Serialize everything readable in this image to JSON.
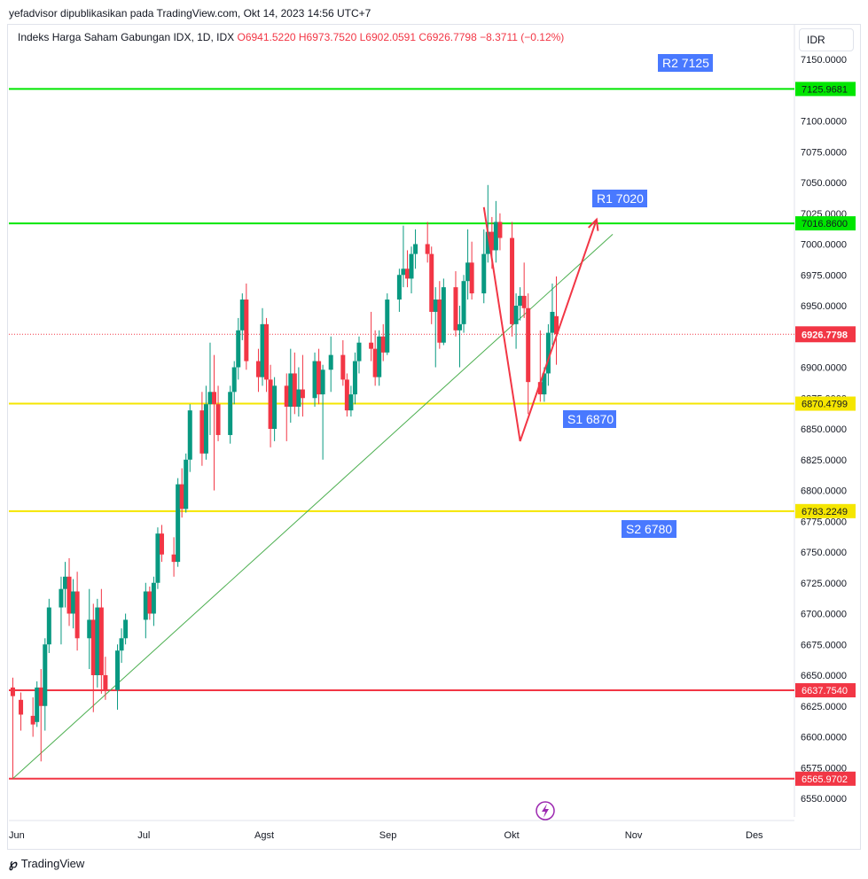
{
  "credit": "yefadvisor dipublikasikan pada TradingView.com, Okt 14, 2023 14:56 UTC+7",
  "header": {
    "symbol": "Indeks Harga Saham Gabungan IDX, 1D, IDX",
    "open": "O6941.5220",
    "high": "H6973.7520",
    "low": "L6902.0591",
    "close": "C6926.7798",
    "change": "−8.3711 (−0.12%)"
  },
  "currency": "IDR",
  "logo": "TradingView",
  "chart_data": {
    "type": "candlestick",
    "y_axis": {
      "min": 6550,
      "max": 7150,
      "ticks": [
        "7150.0000",
        "7125.0000",
        "7100.0000",
        "7075.0000",
        "7050.0000",
        "7025.0000",
        "7000.0000",
        "6975.0000",
        "6950.0000",
        "6925.0000",
        "6900.0000",
        "6875.0000",
        "6850.0000",
        "6825.0000",
        "6800.0000",
        "6775.0000",
        "6750.0000",
        "6725.0000",
        "6700.0000",
        "6675.0000",
        "6650.0000",
        "6625.0000",
        "6600.0000",
        "6575.0000",
        "6550.0000"
      ]
    },
    "x_axis": {
      "labels": [
        {
          "label": "Jun",
          "date": "2023-06-01"
        },
        {
          "label": "Jul",
          "date": "2023-07-03"
        },
        {
          "label": "Agst",
          "date": "2023-08-01"
        },
        {
          "label": "Sep",
          "date": "2023-09-01"
        },
        {
          "label": "Okt",
          "date": "2023-10-02"
        },
        {
          "label": "Nov",
          "date": "2023-11-01"
        },
        {
          "label": "Des",
          "date": "2023-12-01"
        }
      ]
    },
    "levels": [
      {
        "value": 7125.9681,
        "label": "7125.9681",
        "color": "#00e600",
        "tag": "R2 7125"
      },
      {
        "value": 7016.86,
        "label": "7016.8600",
        "color": "#00e600",
        "tag": "R1 7020"
      },
      {
        "value": 6870.4799,
        "label": "6870.4799",
        "color": "#f5e600",
        "tag": "S1 6870"
      },
      {
        "value": 6783.2249,
        "label": "6783.2249",
        "color": "#f5e600",
        "tag": "S2 6780"
      },
      {
        "value": 6637.754,
        "label": "6637.7540",
        "color": "#f23645",
        "tag": ""
      },
      {
        "value": 6565.9702,
        "label": "6565.9702",
        "color": "#f23645",
        "tag": ""
      }
    ],
    "last_price": {
      "value": 6926.7798,
      "label": "6926.7798",
      "color": "#f23645"
    },
    "trendline": {
      "from": {
        "date": "2023-05-31",
        "value": 6566
      },
      "to": {
        "date": "2023-10-27",
        "value": 7008
      },
      "color": "#4caf50"
    },
    "arrow": [
      {
        "date": "2023-09-25",
        "value": 7030
      },
      {
        "date": "2023-10-04",
        "value": 6840
      },
      {
        "date": "2023-10-23",
        "value": 7020
      }
    ],
    "candles": [
      {
        "date": "2023-05-31",
        "o": 6640,
        "h": 6648,
        "l": 6566,
        "c": 6633
      },
      {
        "date": "2023-06-02",
        "o": 6630,
        "h": 6636,
        "l": 6605,
        "c": 6618
      },
      {
        "date": "2023-06-05",
        "o": 6617,
        "h": 6632,
        "l": 6600,
        "c": 6610
      },
      {
        "date": "2023-06-06",
        "o": 6612,
        "h": 6645,
        "l": 6608,
        "c": 6640
      },
      {
        "date": "2023-06-07",
        "o": 6640,
        "h": 6655,
        "l": 6580,
        "c": 6625
      },
      {
        "date": "2023-06-08",
        "o": 6625,
        "h": 6680,
        "l": 6605,
        "c": 6675
      },
      {
        "date": "2023-06-09",
        "o": 6675,
        "h": 6712,
        "l": 6668,
        "c": 6705
      },
      {
        "date": "2023-06-12",
        "o": 6705,
        "h": 6730,
        "l": 6675,
        "c": 6720
      },
      {
        "date": "2023-06-13",
        "o": 6720,
        "h": 6742,
        "l": 6705,
        "c": 6730
      },
      {
        "date": "2023-06-14",
        "o": 6730,
        "h": 6745,
        "l": 6690,
        "c": 6700
      },
      {
        "date": "2023-06-15",
        "o": 6700,
        "h": 6728,
        "l": 6688,
        "c": 6718
      },
      {
        "date": "2023-06-16",
        "o": 6718,
        "h": 6734,
        "l": 6670,
        "c": 6680
      },
      {
        "date": "2023-06-19",
        "o": 6680,
        "h": 6720,
        "l": 6655,
        "c": 6695
      },
      {
        "date": "2023-06-20",
        "o": 6695,
        "h": 6708,
        "l": 6620,
        "c": 6650
      },
      {
        "date": "2023-06-21",
        "o": 6650,
        "h": 6712,
        "l": 6640,
        "c": 6705
      },
      {
        "date": "2023-06-22",
        "o": 6705,
        "h": 6720,
        "l": 6635,
        "c": 6650
      },
      {
        "date": "2023-06-23",
        "o": 6650,
        "h": 6665,
        "l": 6630,
        "c": 6638
      },
      {
        "date": "2023-06-26",
        "o": 6638,
        "h": 6675,
        "l": 6622,
        "c": 6670
      },
      {
        "date": "2023-06-27",
        "o": 6670,
        "h": 6688,
        "l": 6660,
        "c": 6680
      },
      {
        "date": "2023-06-28",
        "o": 6680,
        "h": 6700,
        "l": 6675,
        "c": 6695
      },
      {
        "date": "2023-07-03",
        "o": 6695,
        "h": 6725,
        "l": 6680,
        "c": 6718
      },
      {
        "date": "2023-07-04",
        "o": 6718,
        "h": 6722,
        "l": 6695,
        "c": 6700
      },
      {
        "date": "2023-07-05",
        "o": 6700,
        "h": 6730,
        "l": 6690,
        "c": 6725
      },
      {
        "date": "2023-07-06",
        "o": 6725,
        "h": 6770,
        "l": 6720,
        "c": 6765
      },
      {
        "date": "2023-07-07",
        "o": 6765,
        "h": 6772,
        "l": 6742,
        "c": 6748
      },
      {
        "date": "2023-07-10",
        "o": 6748,
        "h": 6762,
        "l": 6730,
        "c": 6742
      },
      {
        "date": "2023-07-11",
        "o": 6742,
        "h": 6810,
        "l": 6738,
        "c": 6805
      },
      {
        "date": "2023-07-12",
        "o": 6805,
        "h": 6818,
        "l": 6778,
        "c": 6785
      },
      {
        "date": "2023-07-13",
        "o": 6785,
        "h": 6830,
        "l": 6782,
        "c": 6825
      },
      {
        "date": "2023-07-14",
        "o": 6825,
        "h": 6870,
        "l": 6815,
        "c": 6865
      },
      {
        "date": "2023-07-17",
        "o": 6865,
        "h": 6880,
        "l": 6820,
        "c": 6830
      },
      {
        "date": "2023-07-18",
        "o": 6830,
        "h": 6885,
        "l": 6825,
        "c": 6870
      },
      {
        "date": "2023-07-19",
        "o": 6870,
        "h": 6920,
        "l": 6845,
        "c": 6880
      },
      {
        "date": "2023-07-20",
        "o": 6880,
        "h": 6910,
        "l": 6800,
        "c": 6870
      },
      {
        "date": "2023-07-21",
        "o": 6870,
        "h": 6885,
        "l": 6840,
        "c": 6845
      },
      {
        "date": "2023-07-24",
        "o": 6845,
        "h": 6885,
        "l": 6838,
        "c": 6880
      },
      {
        "date": "2023-07-25",
        "o": 6880,
        "h": 6905,
        "l": 6870,
        "c": 6900
      },
      {
        "date": "2023-07-26",
        "o": 6900,
        "h": 6940,
        "l": 6890,
        "c": 6930
      },
      {
        "date": "2023-07-27",
        "o": 6930,
        "h": 6960,
        "l": 6922,
        "c": 6955
      },
      {
        "date": "2023-07-28",
        "o": 6955,
        "h": 6968,
        "l": 6898,
        "c": 6905
      },
      {
        "date": "2023-07-31",
        "o": 6905,
        "h": 6915,
        "l": 6880,
        "c": 6892
      },
      {
        "date": "2023-08-01",
        "o": 6892,
        "h": 6948,
        "l": 6885,
        "c": 6935
      },
      {
        "date": "2023-08-02",
        "o": 6935,
        "h": 6940,
        "l": 6880,
        "c": 6890
      },
      {
        "date": "2023-08-03",
        "o": 6890,
        "h": 6902,
        "l": 6835,
        "c": 6850
      },
      {
        "date": "2023-08-04",
        "o": 6850,
        "h": 6892,
        "l": 6840,
        "c": 6885
      },
      {
        "date": "2023-08-07",
        "o": 6885,
        "h": 6895,
        "l": 6840,
        "c": 6868
      },
      {
        "date": "2023-08-08",
        "o": 6868,
        "h": 6915,
        "l": 6855,
        "c": 6895
      },
      {
        "date": "2023-08-09",
        "o": 6895,
        "h": 6912,
        "l": 6862,
        "c": 6868
      },
      {
        "date": "2023-08-10",
        "o": 6868,
        "h": 6900,
        "l": 6860,
        "c": 6882
      },
      {
        "date": "2023-08-11",
        "o": 6882,
        "h": 6910,
        "l": 6860,
        "c": 6875
      },
      {
        "date": "2023-08-14",
        "o": 6875,
        "h": 6912,
        "l": 6868,
        "c": 6905
      },
      {
        "date": "2023-08-15",
        "o": 6905,
        "h": 6915,
        "l": 6870,
        "c": 6878
      },
      {
        "date": "2023-08-16",
        "o": 6878,
        "h": 6902,
        "l": 6825,
        "c": 6898
      },
      {
        "date": "2023-08-18",
        "o": 6898,
        "h": 6925,
        "l": 6880,
        "c": 6910
      },
      {
        "date": "2023-08-21",
        "o": 6910,
        "h": 6922,
        "l": 6885,
        "c": 6890
      },
      {
        "date": "2023-08-22",
        "o": 6890,
        "h": 6895,
        "l": 6860,
        "c": 6865
      },
      {
        "date": "2023-08-23",
        "o": 6865,
        "h": 6885,
        "l": 6860,
        "c": 6878
      },
      {
        "date": "2023-08-24",
        "o": 6878,
        "h": 6912,
        "l": 6870,
        "c": 6905
      },
      {
        "date": "2023-08-25",
        "o": 6905,
        "h": 6925,
        "l": 6895,
        "c": 6920
      },
      {
        "date": "2023-08-28",
        "o": 6920,
        "h": 6945,
        "l": 6905,
        "c": 6915
      },
      {
        "date": "2023-08-29",
        "o": 6915,
        "h": 6930,
        "l": 6885,
        "c": 6892
      },
      {
        "date": "2023-08-30",
        "o": 6892,
        "h": 6930,
        "l": 6885,
        "c": 6925
      },
      {
        "date": "2023-08-31",
        "o": 6925,
        "h": 6935,
        "l": 6905,
        "c": 6912
      },
      {
        "date": "2023-09-01",
        "o": 6912,
        "h": 6960,
        "l": 6910,
        "c": 6955
      },
      {
        "date": "2023-09-04",
        "o": 6955,
        "h": 6980,
        "l": 6945,
        "c": 6975
      },
      {
        "date": "2023-09-05",
        "o": 6975,
        "h": 7015,
        "l": 6965,
        "c": 6980
      },
      {
        "date": "2023-09-06",
        "o": 6980,
        "h": 6995,
        "l": 6965,
        "c": 6972
      },
      {
        "date": "2023-09-07",
        "o": 6972,
        "h": 6998,
        "l": 6960,
        "c": 6992
      },
      {
        "date": "2023-09-08",
        "o": 6992,
        "h": 7012,
        "l": 6980,
        "c": 7000
      },
      {
        "date": "2023-09-11",
        "o": 7000,
        "h": 7018,
        "l": 6985,
        "c": 6992
      },
      {
        "date": "2023-09-12",
        "o": 6992,
        "h": 6998,
        "l": 6935,
        "c": 6945
      },
      {
        "date": "2023-09-13",
        "o": 6945,
        "h": 6965,
        "l": 6900,
        "c": 6955
      },
      {
        "date": "2023-09-14",
        "o": 6955,
        "h": 6970,
        "l": 6915,
        "c": 6920
      },
      {
        "date": "2023-09-15",
        "o": 6920,
        "h": 6972,
        "l": 6918,
        "c": 6965
      },
      {
        "date": "2023-09-18",
        "o": 6965,
        "h": 6978,
        "l": 6925,
        "c": 6930
      },
      {
        "date": "2023-09-19",
        "o": 6930,
        "h": 6950,
        "l": 6900,
        "c": 6935
      },
      {
        "date": "2023-09-20",
        "o": 6935,
        "h": 6975,
        "l": 6928,
        "c": 6970
      },
      {
        "date": "2023-09-21",
        "o": 6970,
        "h": 7012,
        "l": 6955,
        "c": 6985
      },
      {
        "date": "2023-09-22",
        "o": 6985,
        "h": 7002,
        "l": 6955,
        "c": 6960
      },
      {
        "date": "2023-09-25",
        "o": 6960,
        "h": 7012,
        "l": 6952,
        "c": 6992
      },
      {
        "date": "2023-09-26",
        "o": 6992,
        "h": 7048,
        "l": 6985,
        "c": 7010
      },
      {
        "date": "2023-09-27",
        "o": 7010,
        "h": 7022,
        "l": 6980,
        "c": 6995
      },
      {
        "date": "2023-09-28",
        "o": 6995,
        "h": 7035,
        "l": 6985,
        "c": 7018
      },
      {
        "date": "2023-09-29",
        "o": 7018,
        "h": 7025,
        "l": 6995,
        "c": 7005
      },
      {
        "date": "2023-10-02",
        "o": 7005,
        "h": 7018,
        "l": 6925,
        "c": 6935
      },
      {
        "date": "2023-10-03",
        "o": 6935,
        "h": 6960,
        "l": 6915,
        "c": 6950
      },
      {
        "date": "2023-10-04",
        "o": 6950,
        "h": 6965,
        "l": 6938,
        "c": 6958
      },
      {
        "date": "2023-10-05",
        "o": 6958,
        "h": 6985,
        "l": 6940,
        "c": 6948
      },
      {
        "date": "2023-10-06",
        "o": 6948,
        "h": 6960,
        "l": 6862,
        "c": 6888
      },
      {
        "date": "2023-10-09",
        "o": 6888,
        "h": 6930,
        "l": 6872,
        "c": 6878
      },
      {
        "date": "2023-10-10",
        "o": 6878,
        "h": 6900,
        "l": 6872,
        "c": 6895
      },
      {
        "date": "2023-10-11",
        "o": 6895,
        "h": 6935,
        "l": 6885,
        "c": 6928
      },
      {
        "date": "2023-10-12",
        "o": 6928,
        "h": 6968,
        "l": 6918,
        "c": 6945
      },
      {
        "date": "2023-10-13",
        "o": 6941.522,
        "h": 6973.752,
        "l": 6902.0591,
        "c": 6926.7798
      }
    ]
  }
}
